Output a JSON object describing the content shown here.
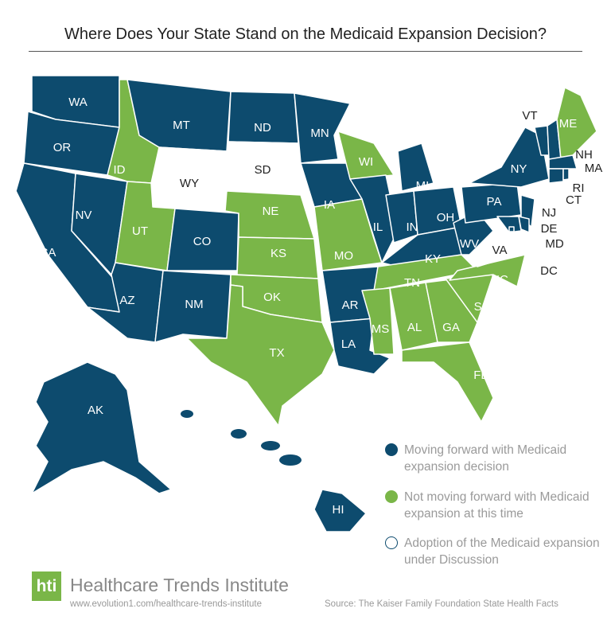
{
  "title": "Where Does Your State Stand on the Medicaid Expansion Decision?",
  "colors": {
    "moving_forward": "#0d4b6e",
    "not_moving_forward": "#7ab648",
    "under_discussion": "#ffffff"
  },
  "legend": [
    {
      "status": "moving_forward",
      "label": "Moving forward with Medicaid expansion decision"
    },
    {
      "status": "not_moving_forward",
      "label": "Not moving forward with Medicaid expansion at this time"
    },
    {
      "status": "under_discussion",
      "label": "Adoption of the Medicaid expansion under Discussion"
    }
  ],
  "states": [
    {
      "code": "WA",
      "status": "moving_forward"
    },
    {
      "code": "OR",
      "status": "moving_forward"
    },
    {
      "code": "CA",
      "status": "moving_forward"
    },
    {
      "code": "NV",
      "status": "moving_forward"
    },
    {
      "code": "ID",
      "status": "not_moving_forward"
    },
    {
      "code": "MT",
      "status": "moving_forward"
    },
    {
      "code": "WY",
      "status": "under_discussion"
    },
    {
      "code": "UT",
      "status": "not_moving_forward"
    },
    {
      "code": "CO",
      "status": "moving_forward"
    },
    {
      "code": "AZ",
      "status": "moving_forward"
    },
    {
      "code": "NM",
      "status": "moving_forward"
    },
    {
      "code": "ND",
      "status": "moving_forward"
    },
    {
      "code": "SD",
      "status": "under_discussion"
    },
    {
      "code": "NE",
      "status": "not_moving_forward"
    },
    {
      "code": "KS",
      "status": "not_moving_forward"
    },
    {
      "code": "OK",
      "status": "not_moving_forward"
    },
    {
      "code": "TX",
      "status": "not_moving_forward"
    },
    {
      "code": "MN",
      "status": "moving_forward"
    },
    {
      "code": "IA",
      "status": "moving_forward"
    },
    {
      "code": "MO",
      "status": "not_moving_forward"
    },
    {
      "code": "AR",
      "status": "moving_forward"
    },
    {
      "code": "LA",
      "status": "moving_forward"
    },
    {
      "code": "WI",
      "status": "not_moving_forward"
    },
    {
      "code": "IL",
      "status": "moving_forward"
    },
    {
      "code": "MI",
      "status": "moving_forward"
    },
    {
      "code": "IN",
      "status": "moving_forward"
    },
    {
      "code": "OH",
      "status": "moving_forward"
    },
    {
      "code": "KY",
      "status": "moving_forward"
    },
    {
      "code": "TN",
      "status": "not_moving_forward"
    },
    {
      "code": "MS",
      "status": "not_moving_forward"
    },
    {
      "code": "AL",
      "status": "not_moving_forward"
    },
    {
      "code": "GA",
      "status": "not_moving_forward"
    },
    {
      "code": "FL",
      "status": "not_moving_forward"
    },
    {
      "code": "SC",
      "status": "not_moving_forward"
    },
    {
      "code": "NC",
      "status": "not_moving_forward"
    },
    {
      "code": "VA",
      "status": "under_discussion"
    },
    {
      "code": "WV",
      "status": "moving_forward"
    },
    {
      "code": "PA",
      "status": "moving_forward"
    },
    {
      "code": "NY",
      "status": "moving_forward"
    },
    {
      "code": "VT",
      "status": "moving_forward"
    },
    {
      "code": "NH",
      "status": "moving_forward"
    },
    {
      "code": "ME",
      "status": "not_moving_forward"
    },
    {
      "code": "MA",
      "status": "moving_forward"
    },
    {
      "code": "CT",
      "status": "moving_forward"
    },
    {
      "code": "RI",
      "status": "moving_forward"
    },
    {
      "code": "NJ",
      "status": "moving_forward"
    },
    {
      "code": "DE",
      "status": "moving_forward"
    },
    {
      "code": "MD",
      "status": "moving_forward"
    },
    {
      "code": "DC",
      "status": "moving_forward"
    },
    {
      "code": "AK",
      "status": "moving_forward"
    },
    {
      "code": "HI",
      "status": "moving_forward"
    }
  ],
  "footer": {
    "logo": "hti",
    "org": "Healthcare Trends Institute",
    "url": "www.evolution1.com/healthcare-trends-institute",
    "source": "Source: The Kaiser Family Foundation State Health Facts"
  }
}
